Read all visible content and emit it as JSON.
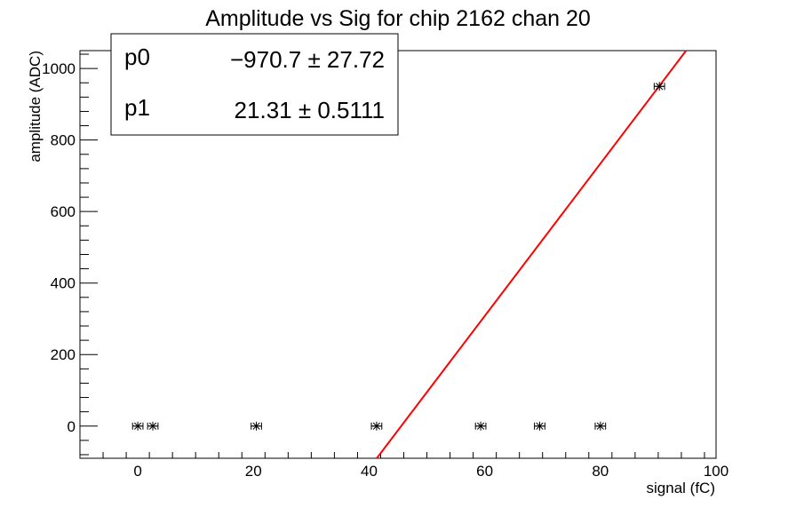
{
  "chart_data": {
    "type": "scatter",
    "title": "Amplitude vs Sig for chip 2162 chan 20",
    "xlabel": "signal (fC)",
    "ylabel": "amplitude (ADC)",
    "xlim": [
      -10,
      100
    ],
    "ylim": [
      -90,
      1050
    ],
    "x_ticks": [
      0,
      20,
      40,
      60,
      80,
      100
    ],
    "y_ticks": [
      0,
      200,
      400,
      600,
      800,
      1000
    ],
    "x_tick_labels": [
      "0",
      "20",
      "40",
      "60",
      "80",
      "100"
    ],
    "y_tick_labels": [
      "0",
      "200",
      "400",
      "600",
      "800",
      "1000"
    ],
    "series": [
      {
        "marker": "asterisk",
        "color": "#000000",
        "x": [
          0,
          2.6,
          20.5,
          41.3,
          59.3,
          69.5,
          80.0,
          90.2
        ],
        "y": [
          0,
          0,
          0,
          0,
          0,
          0,
          0,
          950
        ],
        "xerr": [
          0.9,
          0.9,
          0.9,
          0.9,
          0.9,
          0.9,
          0.9,
          0.9
        ]
      }
    ],
    "fit": {
      "type": "linear",
      "color": "#ff0000",
      "p0": -970.7,
      "p1": 21.31
    },
    "stats_box": {
      "rows": [
        {
          "name": "p0",
          "value": "−970.7 ± 27.72"
        },
        {
          "name": "p1",
          "value": "21.31 ± 0.5111"
        }
      ]
    }
  }
}
